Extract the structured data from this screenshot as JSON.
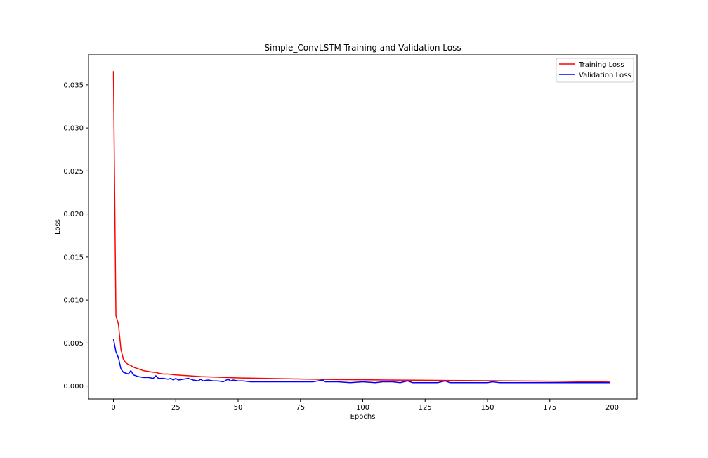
{
  "chart_data": {
    "type": "line",
    "title": "Simple_ConvLSTM Training and Validation Loss",
    "xlabel": "Epochs",
    "ylabel": "Loss",
    "xlim": [
      -10,
      210
    ],
    "ylim": [
      -0.0015,
      0.0385
    ],
    "xticks": [
      0,
      25,
      50,
      75,
      100,
      125,
      150,
      175,
      200
    ],
    "yticks": [
      0.0,
      0.005,
      0.01,
      0.015,
      0.02,
      0.025,
      0.03,
      0.035
    ],
    "ytick_labels": [
      "0.000",
      "0.005",
      "0.010",
      "0.015",
      "0.020",
      "0.025",
      "0.030",
      "0.035"
    ],
    "grid": false,
    "legend_position": "top-right",
    "series": [
      {
        "name": "Training Loss",
        "color": "#ff0000",
        "x": [
          0,
          1,
          2,
          3,
          4,
          5,
          6,
          7,
          8,
          9,
          10,
          12,
          14,
          16,
          17,
          18,
          20,
          22,
          25,
          30,
          35,
          40,
          45,
          50,
          60,
          70,
          80,
          90,
          100,
          110,
          120,
          130,
          140,
          150,
          160,
          170,
          180,
          190,
          199
        ],
        "y": [
          0.0366,
          0.0082,
          0.0072,
          0.0043,
          0.0031,
          0.0027,
          0.0025,
          0.0024,
          0.0022,
          0.0021,
          0.002,
          0.0018,
          0.0017,
          0.0016,
          0.0016,
          0.0015,
          0.0014,
          0.0014,
          0.0013,
          0.0012,
          0.0011,
          0.00105,
          0.001,
          0.00095,
          0.0009,
          0.00085,
          0.0008,
          0.00076,
          0.00073,
          0.0007,
          0.00068,
          0.00066,
          0.00064,
          0.00062,
          0.0006,
          0.00058,
          0.00055,
          0.0005,
          0.00047
        ]
      },
      {
        "name": "Validation Loss",
        "color": "#0000ff",
        "x": [
          0,
          1,
          2,
          3,
          4,
          5,
          6,
          7,
          8,
          10,
          12,
          14,
          16,
          17,
          18,
          20,
          22,
          23,
          24,
          25,
          26,
          28,
          30,
          32,
          34,
          35,
          36,
          38,
          40,
          42,
          44,
          46,
          47,
          48,
          50,
          52,
          55,
          60,
          65,
          70,
          75,
          80,
          84,
          85,
          88,
          90,
          95,
          100,
          105,
          108,
          112,
          115,
          118,
          120,
          125,
          130,
          133,
          135,
          140,
          145,
          150,
          152,
          155,
          160,
          165,
          170,
          175,
          180,
          185,
          190,
          195,
          199
        ],
        "y": [
          0.0055,
          0.004,
          0.0033,
          0.002,
          0.0016,
          0.0015,
          0.0014,
          0.0018,
          0.0013,
          0.0011,
          0.001,
          0.001,
          0.0009,
          0.0012,
          0.0009,
          0.0009,
          0.0008,
          0.0009,
          0.0007,
          0.0009,
          0.0007,
          0.0008,
          0.0009,
          0.0007,
          0.0006,
          0.0008,
          0.0006,
          0.0007,
          0.0006,
          0.0006,
          0.0005,
          0.0008,
          0.0006,
          0.0007,
          0.0006,
          0.0006,
          0.0005,
          0.0005,
          0.0005,
          0.0005,
          0.0005,
          0.0005,
          0.0007,
          0.0005,
          0.0005,
          0.0005,
          0.0004,
          0.0005,
          0.0004,
          0.0005,
          0.0005,
          0.0004,
          0.0006,
          0.0004,
          0.0004,
          0.0004,
          0.0006,
          0.0004,
          0.0004,
          0.0004,
          0.0004,
          0.0005,
          0.0004,
          0.0004,
          0.0004,
          0.0004,
          0.0004,
          0.0004,
          0.0004,
          0.0004,
          0.0004,
          0.0004
        ]
      }
    ]
  }
}
